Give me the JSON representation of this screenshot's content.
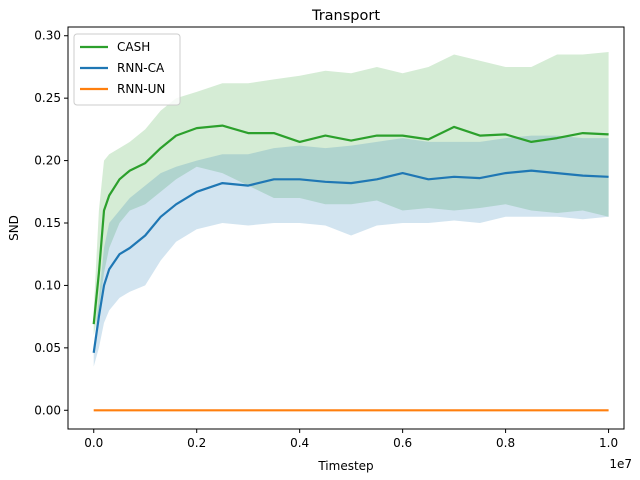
{
  "chart_data": {
    "type": "line",
    "title": "Transport",
    "xlabel": "Timestep",
    "ylabel": "SND",
    "x_offset_label": "1e7",
    "xlim": [
      -0.05,
      1.03
    ],
    "ylim": [
      -0.015,
      0.307
    ],
    "x_ticks": [
      0.0,
      0.2,
      0.4,
      0.6,
      0.8,
      1.0
    ],
    "x_tick_labels": [
      "0.0",
      "0.2",
      "0.4",
      "0.6",
      "0.8",
      "1.0"
    ],
    "y_ticks": [
      0.0,
      0.05,
      0.1,
      0.15,
      0.2,
      0.25,
      0.3
    ],
    "y_tick_labels": [
      "0.00",
      "0.05",
      "0.10",
      "0.15",
      "0.20",
      "0.25",
      "0.30"
    ],
    "grid": false,
    "legend_position": "top-left",
    "x": [
      0.0,
      0.01,
      0.02,
      0.03,
      0.05,
      0.07,
      0.1,
      0.13,
      0.16,
      0.2,
      0.25,
      0.3,
      0.35,
      0.4,
      0.45,
      0.5,
      0.55,
      0.6,
      0.65,
      0.7,
      0.75,
      0.8,
      0.85,
      0.9,
      0.95,
      1.0
    ],
    "series": [
      {
        "name": "CASH",
        "color": "#2ca02c",
        "values": [
          0.069,
          0.11,
          0.16,
          0.172,
          0.185,
          0.192,
          0.198,
          0.21,
          0.22,
          0.226,
          0.228,
          0.222,
          0.222,
          0.215,
          0.22,
          0.216,
          0.22,
          0.22,
          0.217,
          0.227,
          0.22,
          0.221,
          0.215,
          0.218,
          0.222,
          0.221
        ],
        "upper": [
          0.08,
          0.16,
          0.2,
          0.205,
          0.21,
          0.215,
          0.225,
          0.24,
          0.25,
          0.255,
          0.262,
          0.262,
          0.265,
          0.268,
          0.272,
          0.27,
          0.275,
          0.27,
          0.275,
          0.285,
          0.28,
          0.275,
          0.275,
          0.285,
          0.285,
          0.287
        ],
        "lower": [
          0.06,
          0.08,
          0.11,
          0.13,
          0.15,
          0.16,
          0.165,
          0.175,
          0.185,
          0.195,
          0.19,
          0.18,
          0.17,
          0.17,
          0.165,
          0.165,
          0.168,
          0.16,
          0.162,
          0.16,
          0.162,
          0.165,
          0.16,
          0.158,
          0.16,
          0.155
        ]
      },
      {
        "name": "RNN-CA",
        "color": "#1f77b4",
        "values": [
          0.046,
          0.075,
          0.1,
          0.113,
          0.125,
          0.13,
          0.14,
          0.155,
          0.165,
          0.175,
          0.182,
          0.18,
          0.185,
          0.185,
          0.183,
          0.182,
          0.185,
          0.19,
          0.185,
          0.187,
          0.186,
          0.19,
          0.192,
          0.19,
          0.188,
          0.187
        ],
        "upper": [
          0.05,
          0.09,
          0.13,
          0.15,
          0.16,
          0.17,
          0.18,
          0.19,
          0.195,
          0.2,
          0.205,
          0.205,
          0.21,
          0.212,
          0.21,
          0.212,
          0.215,
          0.218,
          0.215,
          0.215,
          0.215,
          0.218,
          0.22,
          0.22,
          0.218,
          0.218
        ],
        "lower": [
          0.035,
          0.05,
          0.07,
          0.08,
          0.09,
          0.095,
          0.1,
          0.12,
          0.135,
          0.145,
          0.15,
          0.148,
          0.15,
          0.15,
          0.148,
          0.14,
          0.148,
          0.15,
          0.15,
          0.152,
          0.15,
          0.155,
          0.155,
          0.155,
          0.153,
          0.155
        ]
      },
      {
        "name": "RNN-UN",
        "color": "#ff7f0e",
        "values": [
          0.0,
          0.0,
          0.0,
          0.0,
          0.0,
          0.0,
          0.0,
          0.0,
          0.0,
          0.0,
          0.0,
          0.0,
          0.0,
          0.0,
          0.0,
          0.0,
          0.0,
          0.0,
          0.0,
          0.0,
          0.0,
          0.0,
          0.0,
          0.0,
          0.0,
          0.0
        ]
      }
    ]
  }
}
